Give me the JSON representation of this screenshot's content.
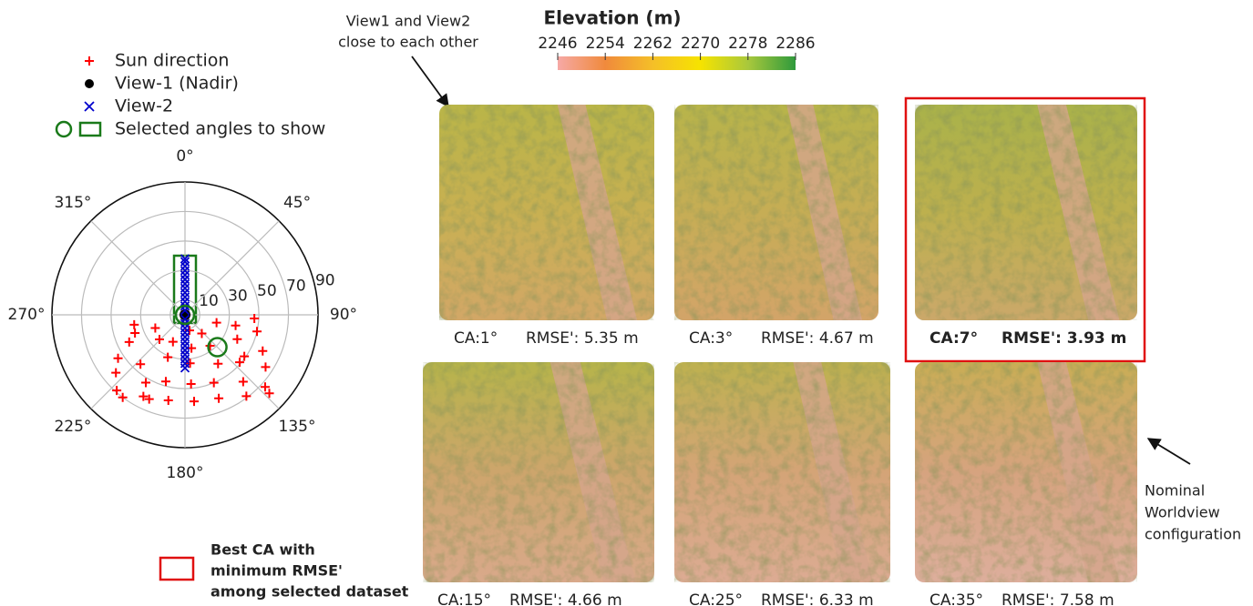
{
  "colorbar": {
    "title": "Elevation (m)",
    "lim": [
      2246,
      2286
    ],
    "ticks": [
      2246,
      2254,
      2262,
      2270,
      2278,
      2286
    ],
    "colors": [
      "#f6a9a6",
      "#f08a3c",
      "#f5bf28",
      "#f6e300",
      "#a9c83c",
      "#2f9a3c"
    ]
  },
  "polar_chart": {
    "type": "polar-scatter",
    "rlim": [
      0,
      90
    ],
    "radial_ticks": [
      10,
      30,
      50,
      70,
      90
    ],
    "angle_ticks": [
      {
        "value": 0,
        "label": "0°"
      },
      {
        "value": 45,
        "label": "45°"
      },
      {
        "value": 90,
        "label": "90°"
      },
      {
        "value": 135,
        "label": "135°"
      },
      {
        "value": 180,
        "label": "180°"
      },
      {
        "value": 225,
        "label": "225°"
      },
      {
        "value": 270,
        "label": "270°"
      },
      {
        "value": 315,
        "label": "315°"
      }
    ],
    "series": [
      {
        "name": "Sun direction",
        "color": "#ff0000",
        "marker": "+",
        "azimuth": [
          259,
          250,
          244,
          237,
          230,
          222,
          217,
          222,
          210,
          207,
          203,
          246,
          226,
          202,
          196,
          191,
          204,
          164,
          169,
          174,
          175,
          174,
          138,
          141,
          146,
          157,
          158,
          104,
          102,
          115,
          131,
          139,
          143,
          93,
          103,
          115,
          123,
          132,
          133,
          125
        ],
        "zenith": [
          35,
          36,
          42,
          54,
          61,
          69,
          70,
          45,
          53,
          62,
          62,
          22,
          24,
          31,
          47,
          59,
          20,
          11,
          23,
          33,
          47,
          59,
          17,
          27,
          40,
          50,
          61,
          22,
          35,
          39,
          49,
          60,
          69,
          47,
          50,
          58,
          65,
          73,
          78,
          49
        ]
      },
      {
        "name": "View-1 (Nadir)",
        "color": "#000000",
        "marker": "dot",
        "azimuth": [
          0
        ],
        "zenith": [
          0
        ]
      },
      {
        "name": "View-2",
        "color": "#0000cc",
        "marker": "x",
        "azimuth": [
          0,
          0,
          0,
          0,
          0,
          0,
          0,
          0,
          0,
          0,
          0,
          0,
          0,
          180,
          180,
          180,
          180,
          180,
          180,
          180,
          180,
          180,
          180,
          180,
          180
        ],
        "zenith": [
          3,
          6,
          9,
          12,
          15,
          18,
          21,
          24,
          27,
          30,
          33,
          36,
          38,
          3,
          6,
          9,
          12,
          15,
          18,
          21,
          24,
          27,
          30,
          33,
          36
        ]
      },
      {
        "name": "Selected angles to show",
        "color": "#1a7a1a",
        "marker": "o",
        "azimuth": [
          0,
          135
        ],
        "zenith": [
          0,
          31
        ]
      }
    ]
  },
  "view_note": [
    "View1 and View2",
    "close to each other"
  ],
  "nominal_note": [
    "Nominal",
    "Worldview",
    "configuration"
  ],
  "best_legend": [
    "Best CA with",
    "minimum RMSE'",
    "among selected dataset"
  ],
  "panels": [
    {
      "ca": "CA:1°",
      "rmse": "RMSE': 5.35 m",
      "best": false
    },
    {
      "ca": "CA:3°",
      "rmse": "RMSE': 4.67 m",
      "best": false
    },
    {
      "ca": "CA:7°",
      "rmse": "RMSE': 3.93 m",
      "best": true
    },
    {
      "ca": "CA:15°",
      "rmse": "RMSE': 4.66 m",
      "best": false
    },
    {
      "ca": "CA:25°",
      "rmse": "RMSE': 6.33 m",
      "best": false
    },
    {
      "ca": "CA:35°",
      "rmse": "RMSE': 7.58 m",
      "best": false
    }
  ]
}
